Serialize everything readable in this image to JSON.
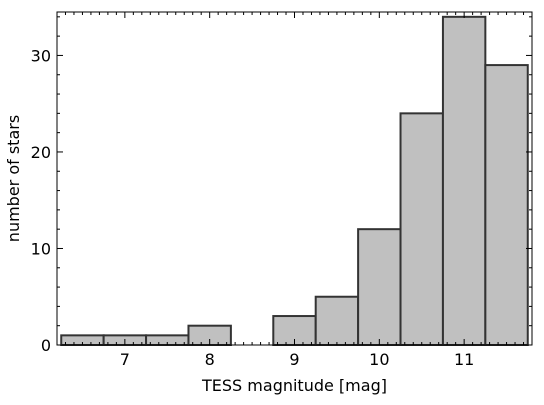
{
  "chart_data": {
    "type": "bar",
    "title": "",
    "xlabel": "TESS magnitude [mag]",
    "ylabel": "number of stars",
    "bin_edges": [
      6.25,
      6.75,
      7.25,
      7.75,
      8.25,
      8.75,
      9.25,
      9.75,
      10.25,
      10.75,
      11.25,
      11.75
    ],
    "values": [
      1,
      1,
      1,
      2,
      0,
      3,
      5,
      12,
      24,
      34,
      29
    ],
    "xlim": [
      6.2,
      11.8
    ],
    "ylim": [
      0,
      34.5
    ],
    "xticks": [
      "7",
      "8",
      "9",
      "10",
      "11"
    ],
    "yticks": [
      "0",
      "10",
      "20",
      "30"
    ],
    "grid": false,
    "bar_color": "#c0c0c0",
    "edge_color": "#333333"
  }
}
